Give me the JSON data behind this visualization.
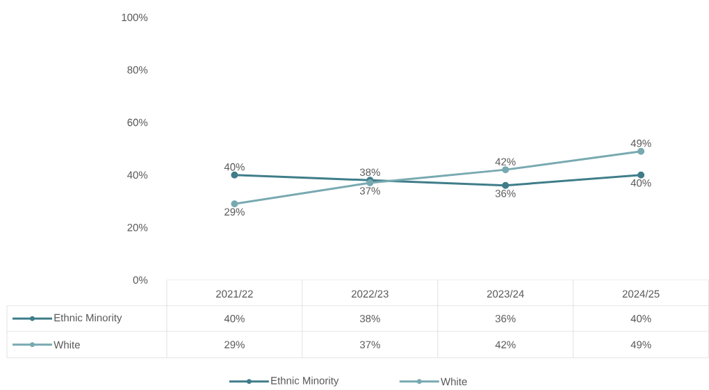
{
  "chart_data": {
    "type": "line",
    "categories": [
      "2021/22",
      "2022/23",
      "2023/24",
      "2024/25"
    ],
    "series": [
      {
        "name": "Ethnic Minority",
        "color": "#3f7d8a",
        "values": [
          40,
          38,
          36,
          40
        ],
        "value_labels": [
          "40%",
          "38%",
          "36%",
          "40%"
        ]
      },
      {
        "name": "White",
        "color": "#78a9b1",
        "values": [
          29,
          37,
          42,
          49
        ],
        "value_labels": [
          "29%",
          "37%",
          "42%",
          "49%"
        ]
      }
    ],
    "ylim": [
      0,
      100
    ],
    "yticks": [
      {
        "value": 0,
        "label": "0%"
      },
      {
        "value": 20,
        "label": "20%"
      },
      {
        "value": 40,
        "label": "40%"
      },
      {
        "value": 60,
        "label": "60%"
      },
      {
        "value": 80,
        "label": "80%"
      },
      {
        "value": 100,
        "label": "100%"
      }
    ],
    "legend": "bottom",
    "marker": "circle",
    "line_style": "solid"
  }
}
